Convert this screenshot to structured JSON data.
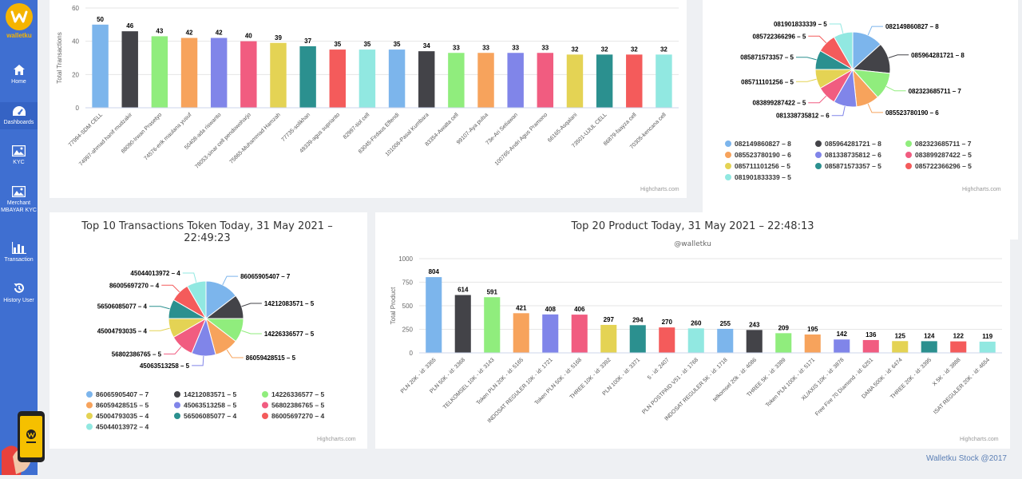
{
  "sidebar": {
    "logo_text": "walletku",
    "items": [
      {
        "label": "Home",
        "icon": "home-icon"
      },
      {
        "label": "Dashboards",
        "icon": "dashboard-icon"
      },
      {
        "label": "KYC",
        "icon": "image-icon"
      },
      {
        "label": "Merchant MBAYAR KYC",
        "icon": "image-icon"
      },
      {
        "label": "Transaction",
        "icon": "bar-chart-icon"
      },
      {
        "label": "History User",
        "icon": "history-icon"
      }
    ]
  },
  "charts": {
    "top_agents": {
      "chart_data": {
        "type": "bar",
        "ylabel": "Total Transactions",
        "ylim": [
          0,
          60
        ],
        "yticks": [
          0,
          20,
          40,
          60
        ],
        "categories": [
          "77994-SDM CELL",
          "74997-ahmad hanif mudzakir",
          "88090-Irwan Prasetyo",
          "74576-erik maulana yusuf",
          "50408-ada riswanto",
          "78053-sinar cell pendowoharjo",
          "75865-Muhammad Hamzah",
          "77735-solikhan",
          "49339-agus suprianto",
          "82997-tiol cell",
          "83045-Firdaus Effendi",
          "101006-Pasal Kumbara",
          "83354-Awatta cell",
          "99107-Aya pulsa",
          "73e-Ari Setiawan",
          "100765-Andri Agus Pramono",
          "66165-Asqalani",
          "73501-UJUL CELL",
          "86879-faayza cell",
          "70305-kencana cell"
        ],
        "values": [
          50,
          46,
          43,
          42,
          42,
          40,
          39,
          37,
          35,
          35,
          35,
          34,
          33,
          33,
          33,
          33,
          32,
          32,
          32,
          32
        ],
        "colors": [
          "#7cb5ec",
          "#434348",
          "#90ed7d",
          "#f7a35c",
          "#8085e9",
          "#f15c80",
          "#e4d354",
          "#2b908f",
          "#f45b5b",
          "#91e8e1",
          "#7cb5ec",
          "#434348",
          "#90ed7d",
          "#f7a35c",
          "#8085e9",
          "#f15c80",
          "#e4d354",
          "#2b908f",
          "#f45b5b",
          "#91e8e1"
        ]
      },
      "credits": "Highcharts.com"
    },
    "top_phones": {
      "chart_data": {
        "type": "pie",
        "slices": [
          {
            "name": "082149860827",
            "value": 8,
            "color": "#7cb5ec",
            "label": "082149860827 – 8"
          },
          {
            "name": "085964281721",
            "value": 8,
            "color": "#434348",
            "label": "085964281721 – 8"
          },
          {
            "name": "082323685711",
            "value": 7,
            "color": "#90ed7d",
            "label": "082323685711 – 7"
          },
          {
            "name": "085523780190",
            "value": 6,
            "color": "#f7a35c",
            "label": "085523780190 – 6"
          },
          {
            "name": "081338735812",
            "value": 6,
            "color": "#8085e9",
            "label": "081338735812 – 6"
          },
          {
            "name": "083899287422",
            "value": 5,
            "color": "#f15c80",
            "label": "083899287422 – 5"
          },
          {
            "name": "085711101256",
            "value": 5,
            "color": "#e4d354",
            "label": "085711101256 – 5"
          },
          {
            "name": "085871573357",
            "value": 5,
            "color": "#2b908f",
            "label": "085871573357 – 5"
          },
          {
            "name": "085722366296",
            "value": 5,
            "color": "#f45b5b",
            "label": "085722366296 – 5"
          },
          {
            "name": "081901833339",
            "value": 5,
            "color": "#91e8e1",
            "label": "081901833339 – 5"
          }
        ]
      },
      "credits": "Highcharts.com"
    },
    "top_tokens": {
      "title": "Top 10 Transactions Token Today, 31 May 2021 – 22:49:23",
      "chart_data": {
        "type": "pie",
        "title": "Top 10 Transactions Token Today, 31 May 2021 – 22:49:23",
        "slices": [
          {
            "name": "86065905407",
            "value": 7,
            "color": "#7cb5ec",
            "label": "86065905407 – 7"
          },
          {
            "name": "14212083571",
            "value": 5,
            "color": "#434348",
            "label": "14212083571 – 5"
          },
          {
            "name": "14226336577",
            "value": 5,
            "color": "#90ed7d",
            "label": "14226336577 – 5"
          },
          {
            "name": "86059428515",
            "value": 5,
            "color": "#f7a35c",
            "label": "86059428515 – 5"
          },
          {
            "name": "45063513258",
            "value": 5,
            "color": "#8085e9",
            "label": "45063513258 – 5"
          },
          {
            "name": "56802386765",
            "value": 5,
            "color": "#f15c80",
            "label": "56802386765 – 5"
          },
          {
            "name": "45004793035",
            "value": 4,
            "color": "#e4d354",
            "label": "45004793035 – 4"
          },
          {
            "name": "56506085077",
            "value": 4,
            "color": "#2b908f",
            "label": "56506085077 – 4"
          },
          {
            "name": "86005697270",
            "value": 4,
            "color": "#f45b5b",
            "label": "86005697270 – 4"
          },
          {
            "name": "45044013972",
            "value": 4,
            "color": "#91e8e1",
            "label": "45044013972 – 4"
          }
        ]
      },
      "credits": "Highcharts.com"
    },
    "top_products": {
      "title": "Top 20 Product Today, 31 May 2021 – 22:48:13",
      "subtitle": "@walletku",
      "chart_data": {
        "type": "bar",
        "title": "Top 20 Product Today, 31 May 2021 – 22:48:13",
        "subtitle": "@walletku",
        "ylabel": "Total Product",
        "ylim": [
          0,
          1000
        ],
        "yticks": [
          0,
          250,
          500,
          750,
          1000
        ],
        "categories": [
          "PLN 20K - id: 3365",
          "PLN 50K - id: 3368",
          "TELKOMSEL 10K - id: 3143",
          "Token PLN 20K - id: 5165",
          "INDOSAT REGULER 10K - id: 1721",
          "Token PLN 50K - id: 5168",
          "THREE 10K - id: 3392",
          "PLN 100K - id: 3371",
          "5 - id: 2407",
          "PLN POSTPAID V51 - id: 1768",
          "INDOSAT REGULER 5K - id: 1718",
          "telkomsel 20k - id: 4086",
          "THREE 5K - id: 3389",
          "Token PLN 100K - id: 5171",
          "XL/AXIS 10K - id: 3878",
          "Free Fire 70 Diamond - id: 6251",
          "DANA 500K - id: 6474",
          "THREE 20K - id: 3395",
          "X 5K - id: 3888",
          "ISAT REGULER 20K - id: 4654"
        ],
        "values": [
          804,
          614,
          591,
          421,
          408,
          406,
          297,
          294,
          270,
          260,
          255,
          243,
          209,
          195,
          142,
          136,
          125,
          124,
          122,
          119
        ],
        "colors": [
          "#7cb5ec",
          "#434348",
          "#90ed7d",
          "#f7a35c",
          "#8085e9",
          "#f15c80",
          "#e4d354",
          "#2b908f",
          "#f45b5b",
          "#91e8e1",
          "#7cb5ec",
          "#434348",
          "#90ed7d",
          "#f7a35c",
          "#8085e9",
          "#f15c80",
          "#e4d354",
          "#2b908f",
          "#f45b5b",
          "#91e8e1"
        ]
      },
      "credits": "Highcharts.com"
    }
  },
  "footer": {
    "text": "Walletku Stock @2017"
  }
}
